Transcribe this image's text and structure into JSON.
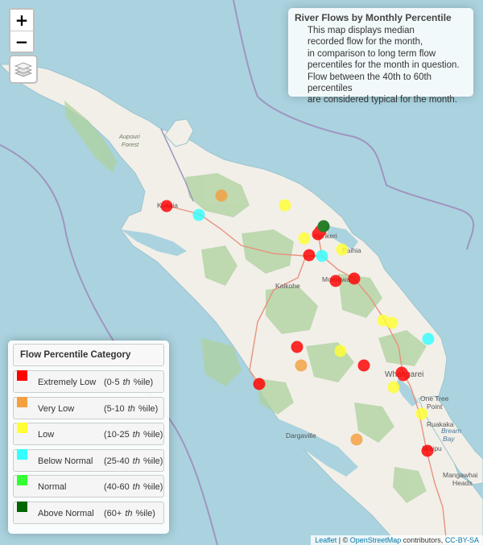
{
  "info": {
    "title": "River Flows by Monthly Percentile",
    "lines": [
      "This map displays median",
      "recorded flow for the month,",
      "in comparison to long term flow",
      "percentiles for the month in question.",
      "Flow between the 40th to 60th percentiles",
      "are considered typical for the month."
    ]
  },
  "controls": {
    "zoom_in": "+",
    "zoom_out": "−",
    "layers_icon": "layers-icon"
  },
  "legend": {
    "title": "Flow Percentile Category",
    "items": [
      {
        "label": "Extremely Low",
        "range_start": "(0-5",
        "th": "th",
        "range_end": "%ile)",
        "color": "#ff0000"
      },
      {
        "label": "Very Low",
        "range_start": "(5-10",
        "th": "th",
        "range_end": "%ile)",
        "color": "#f4a040"
      },
      {
        "label": "Low",
        "range_start": "(10-25",
        "th": "th",
        "range_end": "%ile)",
        "color": "#ffff33"
      },
      {
        "label": "Below Normal",
        "range_start": "(25-40",
        "th": "th",
        "range_end": "%ile)",
        "color": "#33ffff"
      },
      {
        "label": "Normal",
        "range_start": "(40-60",
        "th": "th",
        "range_end": "%ile)",
        "color": "#33ff33"
      },
      {
        "label": "Above Normal",
        "range_start": "(60+",
        "th": "th",
        "range_end": "%ile)",
        "color": "#006600"
      }
    ]
  },
  "places": [
    "Aupouri",
    "Forest",
    "Kaitaia",
    "Kerikeri",
    "Paihia",
    "Kaikohe",
    "Moerewa",
    "Whangarei",
    "One Tree",
    "Point",
    "Ruakaka",
    "Bream",
    "Bay",
    "Waipu",
    "Mangawhai",
    "Heads",
    "Dargaville"
  ],
  "attribution": {
    "leaflet": "Leaflet",
    "sep": " | © ",
    "osm": "OpenStreetMap",
    "contrib": " contributors, ",
    "license": "CC-BY-SA"
  },
  "sites": [
    {
      "category": "Extremely Low"
    },
    {
      "category": "Extremely Low"
    },
    {
      "category": "Extremely Low"
    },
    {
      "category": "Extremely Low"
    },
    {
      "category": "Extremely Low"
    },
    {
      "category": "Extremely Low"
    },
    {
      "category": "Extremely Low"
    },
    {
      "category": "Extremely Low"
    },
    {
      "category": "Extremely Low"
    },
    {
      "category": "Extremely Low"
    },
    {
      "category": "Extremely Low"
    },
    {
      "category": "Extremely Low"
    },
    {
      "category": "Very Low"
    },
    {
      "category": "Very Low"
    },
    {
      "category": "Very Low"
    },
    {
      "category": "Low"
    },
    {
      "category": "Low"
    },
    {
      "category": "Low"
    },
    {
      "category": "Low"
    },
    {
      "category": "Low"
    },
    {
      "category": "Low"
    },
    {
      "category": "Low"
    },
    {
      "category": "Low"
    },
    {
      "category": "Below Normal"
    },
    {
      "category": "Below Normal"
    },
    {
      "category": "Below Normal"
    },
    {
      "category": "Above Normal"
    }
  ]
}
